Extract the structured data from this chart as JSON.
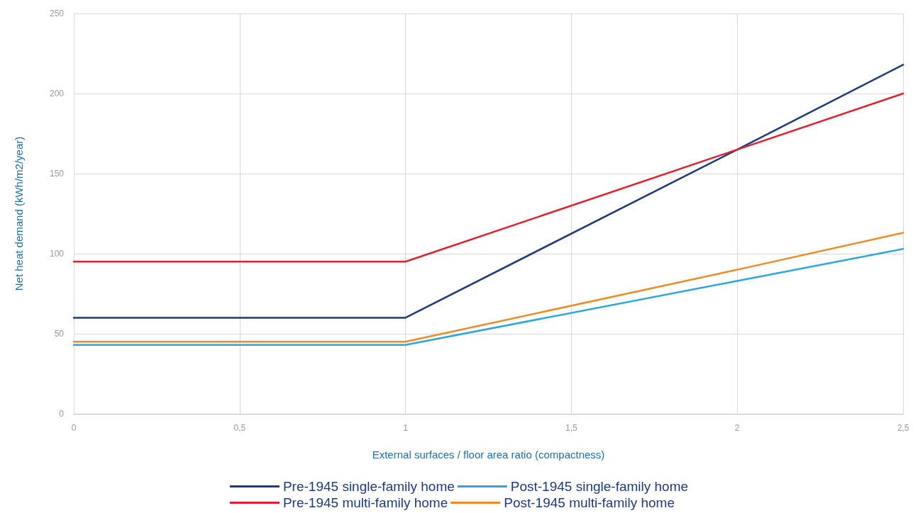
{
  "chart_data": {
    "type": "line",
    "xlabel": "External surfaces / floor area ratio (compactness)",
    "ylabel": "Net heat demand (kWh/m2/year)",
    "x": [
      0,
      1,
      2,
      2.5
    ],
    "series": [
      {
        "name": "Pre-1945 single-family home",
        "color": "#1f3a7a",
        "values": [
          60,
          60,
          165,
          218
        ]
      },
      {
        "name": "Post-1945 single-family home",
        "color": "#2aa7df",
        "values": [
          43,
          43,
          83,
          103
        ]
      },
      {
        "name": "Pre-1945 multi-family home",
        "color": "#e0202e",
        "values": [
          95,
          95,
          165,
          200
        ]
      },
      {
        "name": "Post-1945 multi-family home",
        "color": "#f08a24",
        "values": [
          45,
          45,
          90,
          113
        ]
      }
    ],
    "xlim": [
      0,
      2.5
    ],
    "xticks": [
      0,
      {
        "value": 0.5,
        "label": "0,5"
      },
      1,
      {
        "value": 1.5,
        "label": "1,5"
      },
      2,
      {
        "value": 2.5,
        "label": "2,5"
      }
    ],
    "ylim": [
      0,
      250
    ],
    "yticks": [
      0,
      50,
      100,
      150,
      200,
      250
    ],
    "grid": true,
    "legend": "bottom",
    "marker": "none",
    "line_style": "solid"
  }
}
